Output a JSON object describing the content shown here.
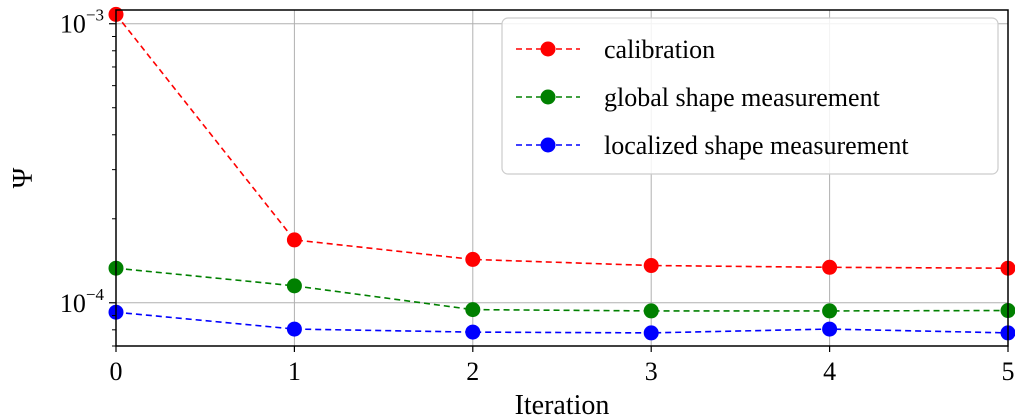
{
  "chart_data": {
    "type": "line",
    "title": "",
    "xlabel": "Iteration",
    "ylabel": "Ψ",
    "x": [
      0,
      1,
      2,
      3,
      4,
      5
    ],
    "xlim": [
      0,
      5
    ],
    "xticks": [
      "0",
      "1",
      "2",
      "3",
      "4",
      "5"
    ],
    "yscale": "log",
    "ylim": [
      7e-05,
      0.00112
    ],
    "yticks": [
      {
        "value": 0.001,
        "base": "10",
        "exp": "−3"
      },
      {
        "value": 0.0001,
        "base": "10",
        "exp": "−4"
      }
    ],
    "grid": true,
    "legend_position": "top-right",
    "series": [
      {
        "name": "calibration",
        "color": "#ff0000",
        "line_style": "dashed",
        "marker": "circle",
        "values": [
          0.00108,
          0.000168,
          0.000143,
          0.000136,
          0.000134,
          0.000133
        ]
      },
      {
        "name": "global shape measurement",
        "color": "#008000",
        "line_style": "dashed",
        "marker": "circle",
        "values": [
          0.000133,
          0.000115,
          9.45e-05,
          9.35e-05,
          9.35e-05,
          9.38e-05
        ]
      },
      {
        "name": "localized shape measurement",
        "color": "#0000ff",
        "line_style": "dashed",
        "marker": "circle",
        "values": [
          9.25e-05,
          8.05e-05,
          7.85e-05,
          7.8e-05,
          8.05e-05,
          7.8e-05
        ]
      }
    ]
  }
}
